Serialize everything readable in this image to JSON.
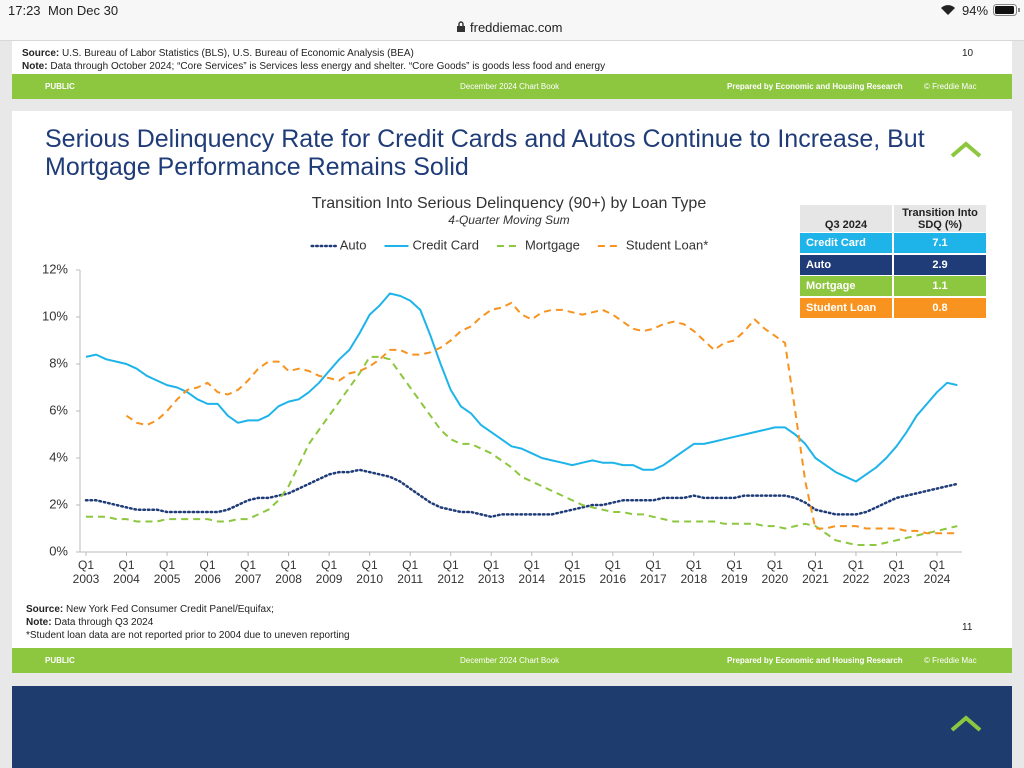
{
  "status_bar": {
    "time": "17:23",
    "date": "Mon Dec 30",
    "url": "freddiemac.com",
    "battery": "94%"
  },
  "previous_slide": {
    "source_label": "Source:",
    "source": "U.S. Bureau of Labor Statistics (BLS), U.S. Bureau of Economic Analysis (BEA)",
    "note_label": "Note:",
    "note": "Data through October 2024; “Core Services” is Services less energy and shelter. “Core Goods” is goods less food and energy",
    "page_number": "10",
    "footer": {
      "classification": "PUBLIC",
      "book": "December 2024 Chart Book",
      "prepared_by": "Prepared by Economic and Housing Research",
      "copyright": "© Freddie Mac"
    }
  },
  "slide": {
    "title": "Serious Delinquency Rate for Credit Cards and Autos Continue to Increase, But Mortgage Performance Remains Solid",
    "source_label": "Source:",
    "source": "New York Fed Consumer Credit Panel/Equifax;",
    "note_label": "Note:",
    "note": "Data through Q3 2024",
    "footnote": "*Student loan data are not reported prior to 2004 due to uneven reporting",
    "page_number": "11",
    "footer": {
      "classification": "PUBLIC",
      "book": "December 2024 Chart Book",
      "prepared_by": "Prepared by Economic and Housing Research",
      "copyright": "© Freddie Mac"
    }
  },
  "chart_data": {
    "type": "line",
    "title": "Transition Into Serious Delinquency (90+) by Loan Type",
    "subtitle": "4-Quarter Moving Sum",
    "legend": "top",
    "grid": false,
    "categories": [
      "Q1\n2003",
      null,
      null,
      null,
      "Q1\n2004",
      null,
      null,
      null,
      "Q1\n2005",
      null,
      null,
      null,
      "Q1\n2006",
      null,
      null,
      null,
      "Q1\n2007",
      null,
      null,
      null,
      "Q1\n2008",
      null,
      null,
      null,
      "Q1\n2009",
      null,
      null,
      null,
      "Q1\n2010",
      null,
      null,
      null,
      "Q1\n2011",
      null,
      null,
      null,
      "Q1\n2012",
      null,
      null,
      null,
      "Q1\n2013",
      null,
      null,
      null,
      "Q1\n2014",
      null,
      null,
      null,
      "Q1\n2015",
      null,
      null,
      null,
      "Q1\n2016",
      null,
      null,
      null,
      "Q1\n2017",
      null,
      null,
      null,
      "Q1\n2018",
      null,
      null,
      null,
      "Q1\n2019",
      null,
      null,
      null,
      "Q1\n2020",
      null,
      null,
      null,
      "Q1\n2021",
      null,
      null,
      null,
      "Q1\n2022",
      null,
      null,
      null,
      "Q1\n2023",
      null,
      null,
      null,
      "Q1\n2024",
      null,
      null
    ],
    "ylim": [
      0,
      12
    ],
    "yticks": [
      {
        "value": 0,
        "label": "0%"
      },
      {
        "value": 2,
        "label": "2%"
      },
      {
        "value": 4,
        "label": "4%"
      },
      {
        "value": 6,
        "label": "6%"
      },
      {
        "value": 8,
        "label": "8%"
      },
      {
        "value": 10,
        "label": "10%"
      },
      {
        "value": 12,
        "label": "12%"
      }
    ],
    "series": [
      {
        "name": "Auto",
        "color": "#1f3c78",
        "style": "dotted",
        "values": [
          2.2,
          2.2,
          2.1,
          2.0,
          1.9,
          1.8,
          1.8,
          1.8,
          1.7,
          1.7,
          1.7,
          1.7,
          1.7,
          1.7,
          1.8,
          2.0,
          2.2,
          2.3,
          2.3,
          2.4,
          2.5,
          2.7,
          2.9,
          3.1,
          3.3,
          3.4,
          3.4,
          3.5,
          3.4,
          3.3,
          3.2,
          3.0,
          2.7,
          2.4,
          2.1,
          1.9,
          1.8,
          1.7,
          1.7,
          1.6,
          1.5,
          1.6,
          1.6,
          1.6,
          1.6,
          1.6,
          1.6,
          1.7,
          1.8,
          1.9,
          2.0,
          2.0,
          2.1,
          2.2,
          2.2,
          2.2,
          2.2,
          2.3,
          2.3,
          2.3,
          2.4,
          2.3,
          2.3,
          2.3,
          2.3,
          2.4,
          2.4,
          2.4,
          2.4,
          2.4,
          2.3,
          2.1,
          1.8,
          1.7,
          1.6,
          1.6,
          1.6,
          1.7,
          1.9,
          2.1,
          2.3,
          2.4,
          2.5,
          2.6,
          2.7,
          2.8,
          2.9
        ]
      },
      {
        "name": "Credit Card",
        "color": "#1eb4ea",
        "style": "solid",
        "values": [
          8.3,
          8.4,
          8.2,
          8.1,
          8.0,
          7.8,
          7.5,
          7.3,
          7.1,
          7.0,
          6.8,
          6.5,
          6.3,
          6.3,
          5.8,
          5.5,
          5.6,
          5.6,
          5.8,
          6.2,
          6.4,
          6.5,
          6.8,
          7.2,
          7.7,
          8.2,
          8.6,
          9.3,
          10.1,
          10.5,
          11.0,
          10.9,
          10.7,
          10.3,
          9.2,
          8.0,
          6.9,
          6.2,
          5.9,
          5.4,
          5.1,
          4.8,
          4.5,
          4.4,
          4.2,
          4.0,
          3.9,
          3.8,
          3.7,
          3.8,
          3.9,
          3.8,
          3.8,
          3.7,
          3.7,
          3.5,
          3.5,
          3.7,
          4.0,
          4.3,
          4.6,
          4.6,
          4.7,
          4.8,
          4.9,
          5.0,
          5.1,
          5.2,
          5.3,
          5.3,
          5.0,
          4.6,
          4.0,
          3.7,
          3.4,
          3.2,
          3.0,
          3.3,
          3.6,
          4.0,
          4.5,
          5.1,
          5.8,
          6.3,
          6.8,
          7.2,
          7.1
        ]
      },
      {
        "name": "Mortgage",
        "color": "#8dc63f",
        "style": "dashed",
        "values": [
          1.5,
          1.5,
          1.5,
          1.4,
          1.4,
          1.3,
          1.3,
          1.3,
          1.4,
          1.4,
          1.4,
          1.4,
          1.4,
          1.3,
          1.3,
          1.4,
          1.4,
          1.6,
          1.8,
          2.2,
          2.8,
          3.7,
          4.6,
          5.2,
          5.8,
          6.4,
          7.0,
          7.6,
          8.3,
          8.3,
          8.2,
          7.6,
          7.0,
          6.4,
          5.8,
          5.2,
          4.8,
          4.6,
          4.6,
          4.4,
          4.2,
          3.9,
          3.6,
          3.2,
          3.0,
          2.8,
          2.6,
          2.4,
          2.2,
          2.0,
          1.9,
          1.8,
          1.7,
          1.7,
          1.6,
          1.6,
          1.5,
          1.4,
          1.3,
          1.3,
          1.3,
          1.3,
          1.3,
          1.2,
          1.2,
          1.2,
          1.2,
          1.1,
          1.1,
          1.0,
          1.1,
          1.2,
          1.1,
          0.8,
          0.5,
          0.4,
          0.3,
          0.3,
          0.3,
          0.4,
          0.5,
          0.6,
          0.7,
          0.8,
          0.9,
          1.0,
          1.1
        ]
      },
      {
        "name": "Student Loan*",
        "color": "#f7931e",
        "style": "dashed",
        "values": [
          null,
          null,
          null,
          null,
          5.8,
          5.5,
          5.4,
          5.6,
          6.0,
          6.5,
          6.9,
          7.0,
          7.2,
          6.8,
          6.7,
          6.9,
          7.3,
          7.8,
          8.1,
          8.1,
          7.7,
          7.8,
          7.7,
          7.5,
          7.4,
          7.3,
          7.6,
          7.7,
          7.9,
          8.2,
          8.6,
          8.6,
          8.4,
          8.4,
          8.5,
          8.7,
          9.0,
          9.4,
          9.6,
          10.0,
          10.3,
          10.4,
          10.6,
          10.1,
          9.9,
          10.2,
          10.3,
          10.3,
          10.2,
          10.1,
          10.2,
          10.3,
          10.1,
          9.8,
          9.5,
          9.4,
          9.5,
          9.7,
          9.8,
          9.7,
          9.4,
          9.0,
          8.6,
          8.9,
          9.0,
          9.4,
          9.9,
          9.5,
          9.2,
          8.9,
          6.0,
          3.0,
          1.0,
          1.0,
          1.1,
          1.1,
          1.1,
          1.0,
          1.0,
          1.0,
          1.0,
          0.9,
          0.9,
          0.8,
          0.8,
          0.8,
          0.8
        ]
      }
    ]
  },
  "summary_table": {
    "header": [
      "Q3 2024",
      "Transition Into\nSDQ (%)"
    ],
    "rows": [
      {
        "label": "Credit Card",
        "value": "7.1",
        "color": "#1eb4ea"
      },
      {
        "label": "Auto",
        "value": "2.9",
        "color": "#1f3c78"
      },
      {
        "label": "Mortgage",
        "value": "1.1",
        "color": "#8dc63f"
      },
      {
        "label": "Student Loan",
        "value": "0.8",
        "color": "#f7931e"
      }
    ]
  }
}
